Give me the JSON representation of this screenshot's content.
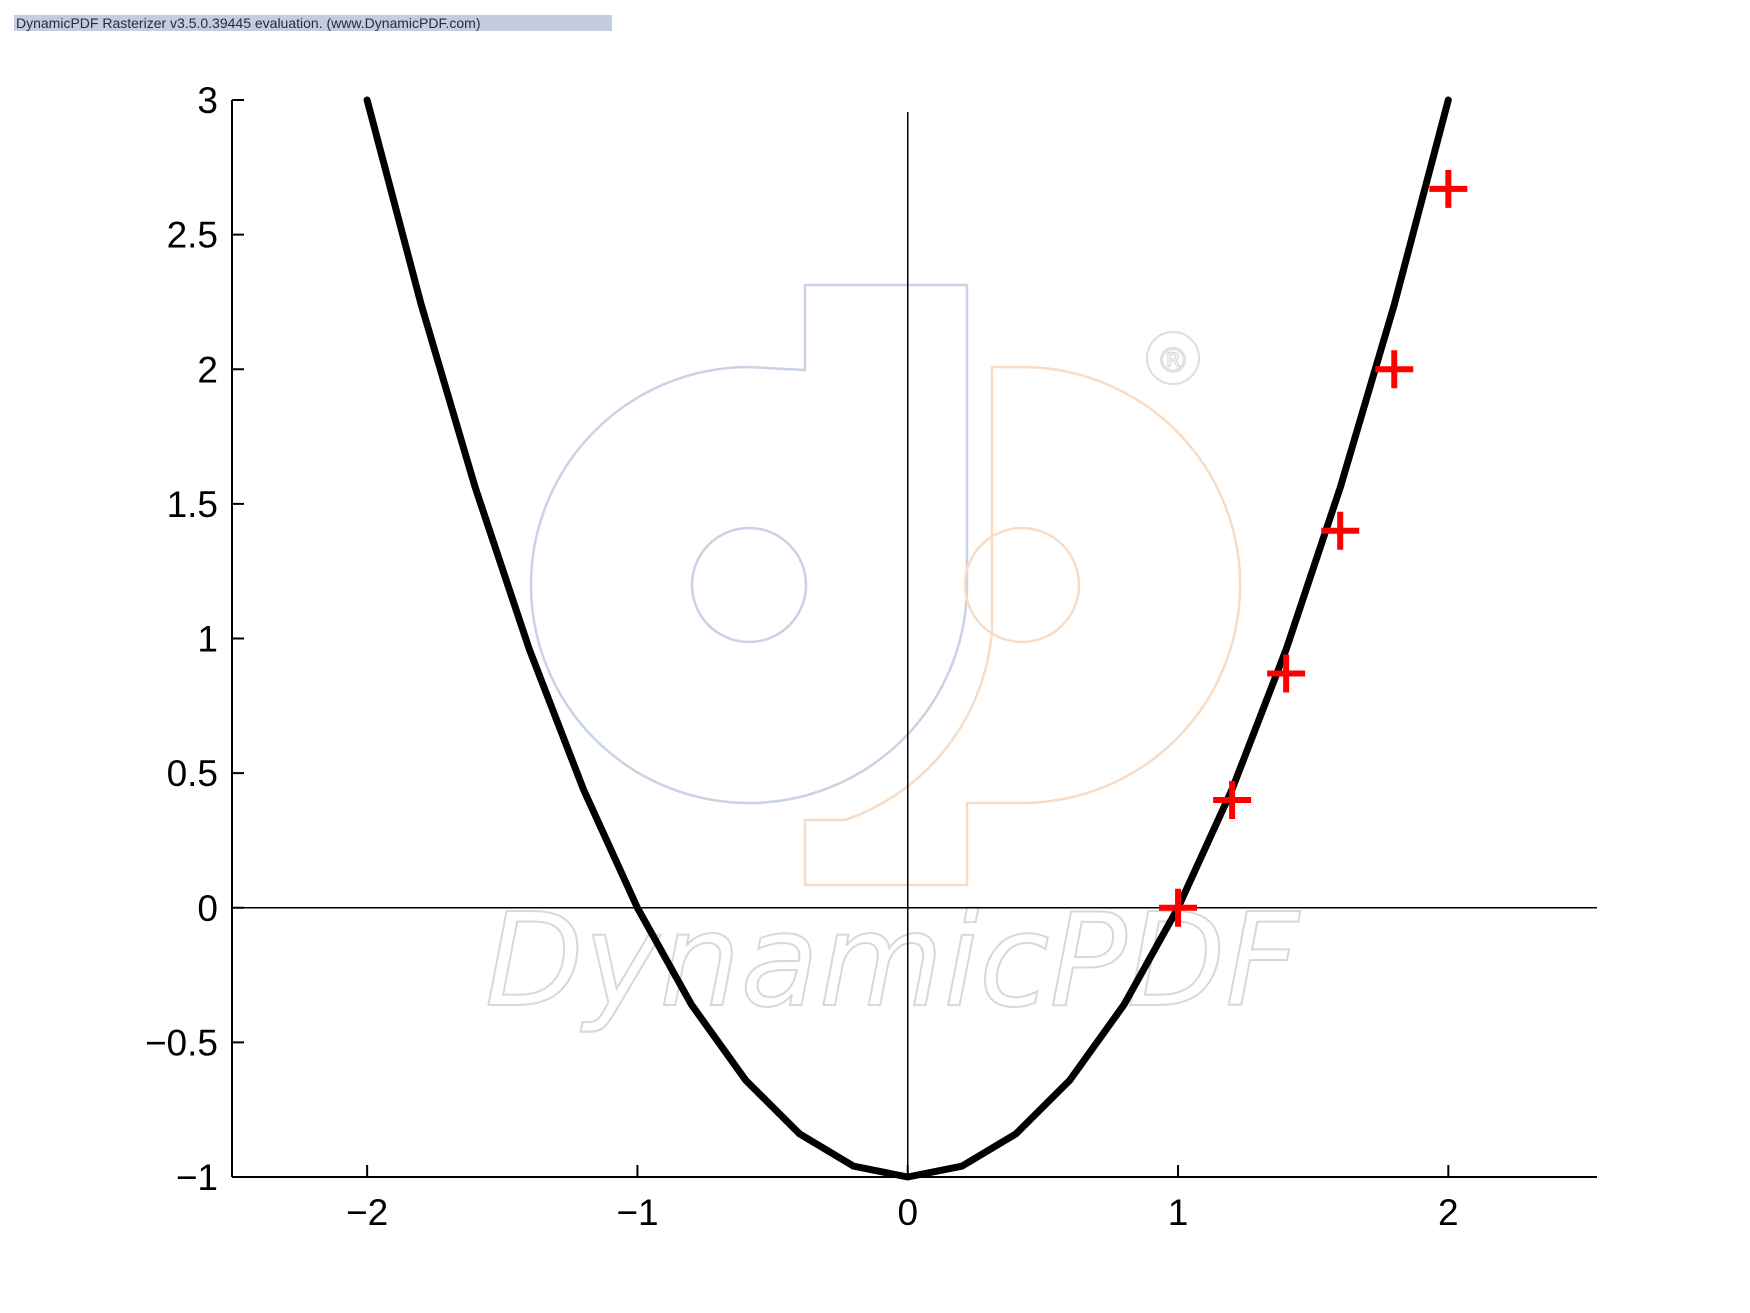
{
  "banner": {
    "text": "DynamicPDF Rasterizer v3.5.0.39445 evaluation. (www.DynamicPDF.com)"
  },
  "watermark": {
    "text": "DynamicPDF",
    "registered": "®",
    "colors": {
      "blue": "#c9d3e6",
      "orange": "#f7dcc6",
      "text": "#d8d8d8"
    }
  },
  "chart_data": {
    "type": "scatter",
    "title": "",
    "xlabel": "",
    "ylabel": "",
    "xlim": [
      -2.5,
      2.55
    ],
    "ylim": [
      -1,
      3
    ],
    "grid": false,
    "legend": "none",
    "xticks": [
      -2,
      -1,
      0,
      1,
      2
    ],
    "xtick_labels": [
      "−2",
      "−1",
      "0",
      "1",
      "2"
    ],
    "yticks": [
      -1,
      -0.5,
      0,
      0.5,
      1,
      1.5,
      2,
      2.5,
      3
    ],
    "ytick_labels": [
      "−1",
      "−0.5",
      "0",
      "0.5",
      "1",
      "1.5",
      "2",
      "2.5",
      "3"
    ],
    "reference_lines": {
      "x": 0,
      "y": 0
    },
    "series": [
      {
        "kind": "line",
        "color": "#000000",
        "x": [
          -2.0,
          -1.8,
          -1.6,
          -1.4,
          -1.2,
          -1.0,
          -0.8,
          -0.6,
          -0.4,
          -0.2,
          0.0,
          0.2,
          0.4,
          0.6,
          0.8,
          1.0,
          1.2,
          1.4,
          1.6,
          1.8,
          2.0
        ],
        "y": [
          3.0,
          2.24,
          1.56,
          0.96,
          0.44,
          0.0,
          -0.36,
          -0.64,
          -0.84,
          -0.96,
          -1.0,
          -0.96,
          -0.84,
          -0.64,
          -0.36,
          0.0,
          0.44,
          0.96,
          1.56,
          2.24,
          3.0
        ]
      },
      {
        "kind": "markers",
        "marker": "plus",
        "color": "#ff0000",
        "x": [
          1.0,
          1.2,
          1.4,
          1.6,
          1.8,
          2.0
        ],
        "y": [
          0.0,
          0.4,
          0.87,
          1.4,
          2.0,
          2.67
        ]
      }
    ]
  }
}
